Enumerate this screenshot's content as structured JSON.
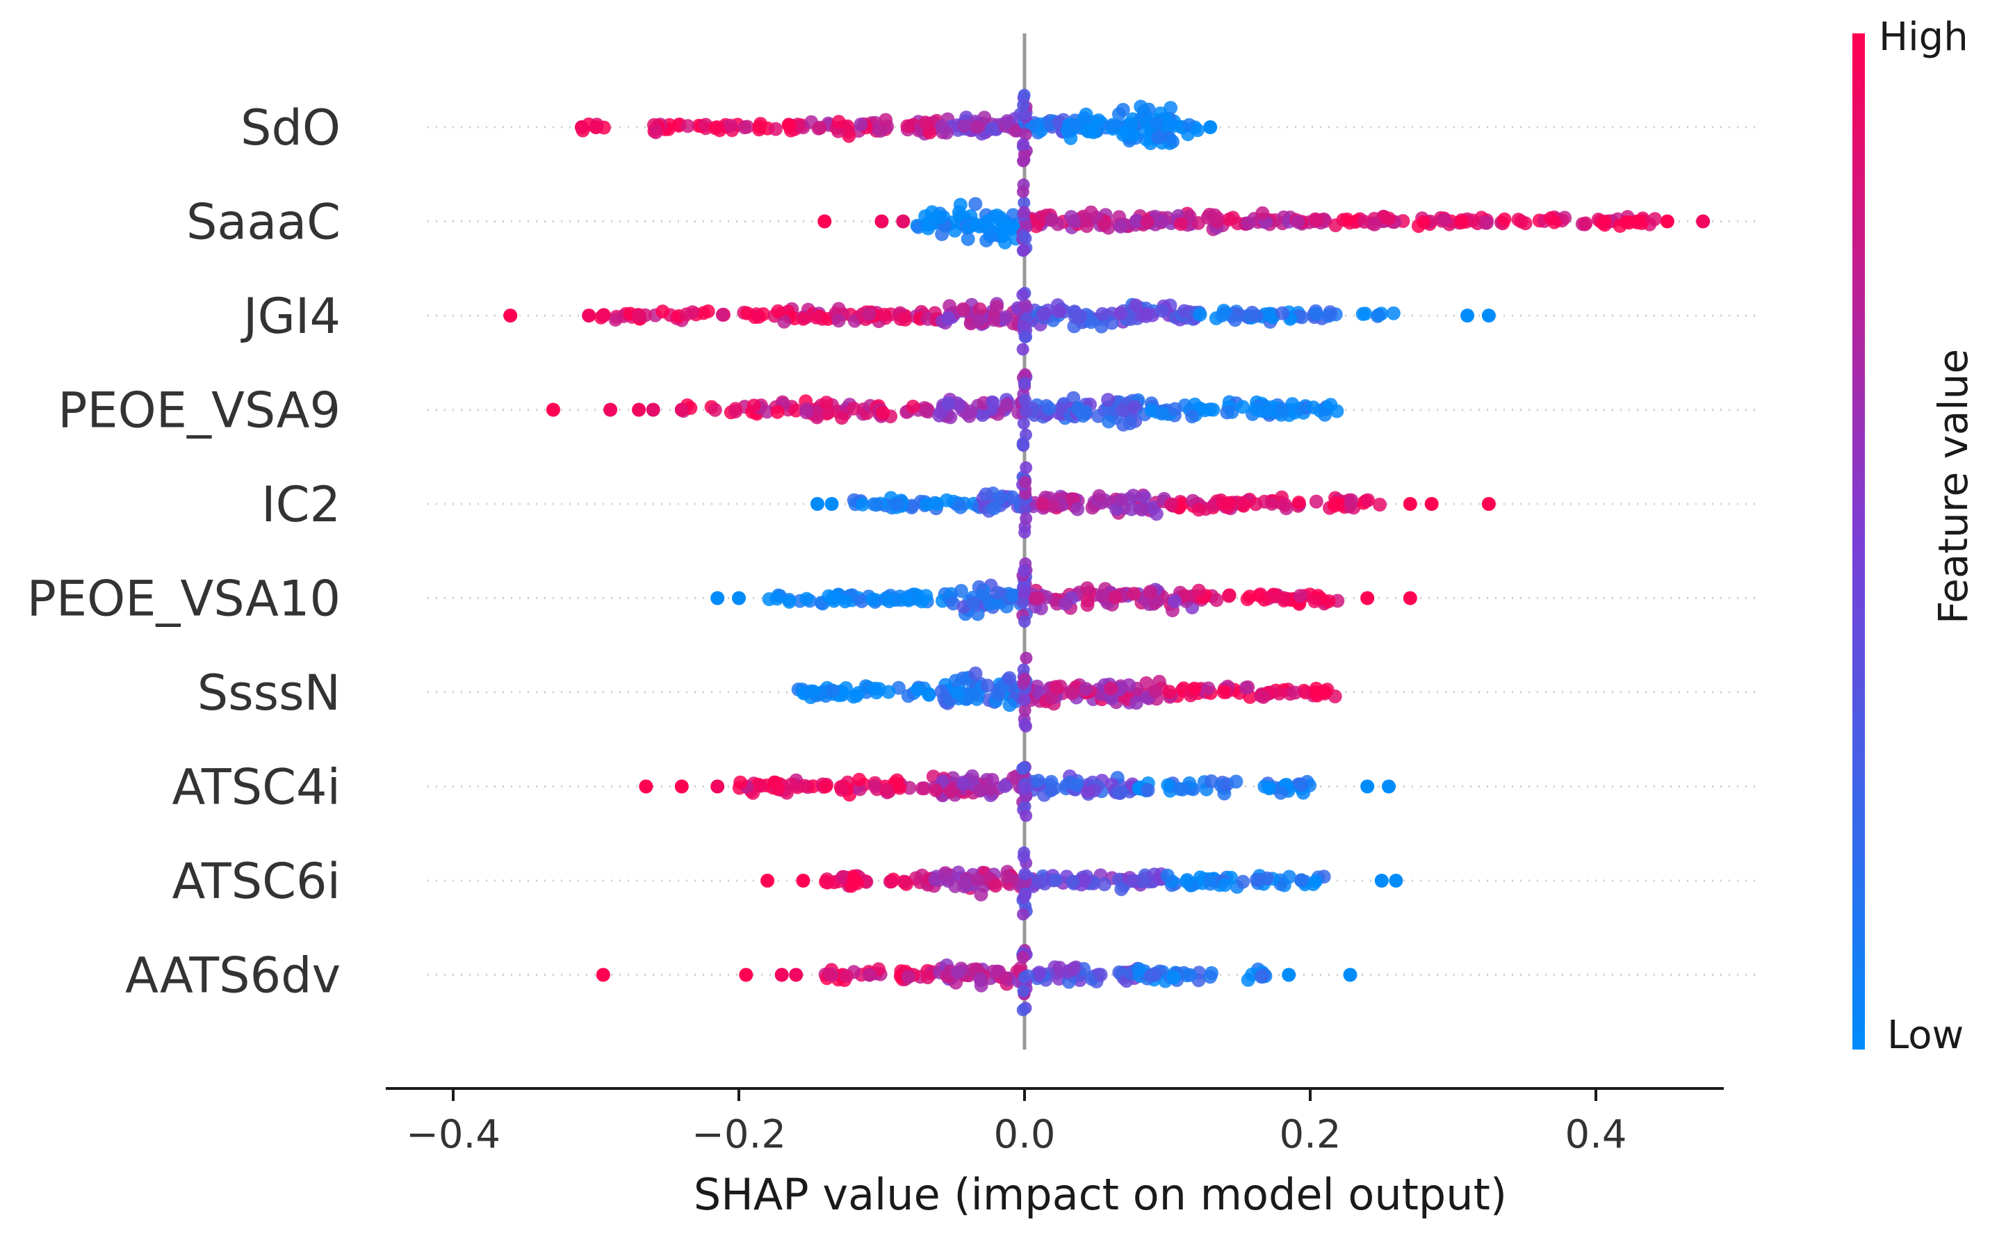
{
  "chart_data": {
    "type": "scatter",
    "subtype": "shap-beeswarm",
    "xlabel": "SHAP value (impact on model output)",
    "xlim": [
      -0.5,
      0.67
    ],
    "xticks": [
      -0.4,
      -0.2,
      0.0,
      0.2,
      0.4
    ],
    "xtick_labels": [
      "−0.4",
      "−0.2",
      "0.0",
      "0.2",
      "0.4"
    ],
    "zero_line": true,
    "colorbar": {
      "title": "Feature value",
      "high_label": "High",
      "low_label": "Low",
      "low_color": "#008bfb",
      "mid_color": "#7a3fd6",
      "high_color": "#ff0052"
    },
    "features": [
      {
        "name": "SdO",
        "segments": [
          {
            "from": -0.31,
            "to": -0.29,
            "color": 1.0,
            "density": 0.3,
            "spread": 0.15
          },
          {
            "from": -0.27,
            "to": -0.15,
            "color": 0.95,
            "density": 1.0,
            "spread": 0.2
          },
          {
            "from": -0.15,
            "to": -0.06,
            "color": 0.8,
            "density": 1.4,
            "spread": 0.3
          },
          {
            "from": -0.06,
            "to": 0.0,
            "color": 0.55,
            "density": 2.2,
            "spread": 0.45
          },
          {
            "from": 0.0,
            "to": 0.03,
            "color": 0.2,
            "density": 2.0,
            "spread": 0.45
          },
          {
            "from": 0.03,
            "to": 0.11,
            "color": 0.0,
            "density": 3.2,
            "spread": 0.75
          },
          {
            "from": 0.11,
            "to": 0.13,
            "color": 0.0,
            "density": 0.8,
            "spread": 0.3
          }
        ],
        "outliers": [
          [
            -0.31,
            0.95
          ],
          [
            -0.3,
            0.95
          ],
          [
            0.13,
            0.0
          ]
        ]
      },
      {
        "name": "SaaaC",
        "segments": [
          {
            "from": -0.08,
            "to": -0.04,
            "color": 0.0,
            "density": 2.2,
            "spread": 0.55
          },
          {
            "from": -0.04,
            "to": -0.005,
            "color": 0.0,
            "density": 3.0,
            "spread": 0.9
          },
          {
            "from": 0.0,
            "to": 0.2,
            "color": 0.75,
            "density": 1.6,
            "spread": 0.3
          },
          {
            "from": 0.2,
            "to": 0.45,
            "color": 0.9,
            "density": 1.0,
            "spread": 0.2
          }
        ],
        "outliers": [
          [
            -0.14,
            1.0
          ],
          [
            -0.1,
            0.95
          ],
          [
            -0.085,
            0.9
          ],
          [
            0.43,
            1.0
          ],
          [
            0.45,
            1.0
          ],
          [
            0.475,
            0.95
          ]
        ]
      },
      {
        "name": "JGI4",
        "segments": [
          {
            "from": -0.3,
            "to": -0.18,
            "color": 0.95,
            "density": 0.8,
            "spread": 0.2
          },
          {
            "from": -0.18,
            "to": -0.06,
            "color": 0.85,
            "density": 1.4,
            "spread": 0.35
          },
          {
            "from": -0.06,
            "to": 0.0,
            "color": 0.65,
            "density": 2.2,
            "spread": 0.5
          },
          {
            "from": 0.0,
            "to": 0.12,
            "color": 0.35,
            "density": 1.8,
            "spread": 0.4
          },
          {
            "from": 0.12,
            "to": 0.22,
            "color": 0.1,
            "density": 1.2,
            "spread": 0.25
          },
          {
            "from": 0.23,
            "to": 0.26,
            "color": 0.0,
            "density": 0.6,
            "spread": 0.15
          }
        ],
        "outliers": [
          [
            -0.36,
            1.0
          ],
          [
            -0.305,
            0.95
          ],
          [
            -0.295,
            0.95
          ],
          [
            -0.27,
            0.9
          ],
          [
            0.31,
            0.0
          ],
          [
            0.325,
            0.0
          ]
        ]
      },
      {
        "name": "PEOE_VSA9",
        "segments": [
          {
            "from": -0.24,
            "to": -0.19,
            "color": 0.95,
            "density": 0.6,
            "spread": 0.2
          },
          {
            "from": -0.19,
            "to": -0.06,
            "color": 0.85,
            "density": 1.3,
            "spread": 0.3
          },
          {
            "from": -0.06,
            "to": 0.0,
            "color": 0.6,
            "density": 2.0,
            "spread": 0.45
          },
          {
            "from": 0.0,
            "to": 0.08,
            "color": 0.3,
            "density": 2.4,
            "spread": 0.55
          },
          {
            "from": 0.08,
            "to": 0.22,
            "color": 0.05,
            "density": 1.4,
            "spread": 0.3
          }
        ],
        "outliers": [
          [
            -0.33,
            1.0
          ],
          [
            -0.29,
            0.95
          ],
          [
            -0.27,
            0.95
          ],
          [
            -0.26,
            0.9
          ],
          [
            -0.24,
            0.9
          ]
        ]
      },
      {
        "name": "IC2",
        "segments": [
          {
            "from": -0.12,
            "to": -0.03,
            "color": 0.05,
            "density": 1.2,
            "spread": 0.25
          },
          {
            "from": -0.03,
            "to": 0.0,
            "color": 0.35,
            "density": 2.0,
            "spread": 0.45
          },
          {
            "from": 0.0,
            "to": 0.1,
            "color": 0.7,
            "density": 1.8,
            "spread": 0.35
          },
          {
            "from": 0.1,
            "to": 0.25,
            "color": 0.9,
            "density": 1.2,
            "spread": 0.25
          }
        ],
        "outliers": [
          [
            -0.145,
            0.0
          ],
          [
            -0.135,
            0.0
          ],
          [
            0.27,
            1.0
          ],
          [
            0.285,
            1.0
          ],
          [
            0.325,
            1.0
          ]
        ]
      },
      {
        "name": "PEOE_VSA10",
        "segments": [
          {
            "from": -0.18,
            "to": -0.05,
            "color": 0.0,
            "density": 1.3,
            "spread": 0.25
          },
          {
            "from": -0.05,
            "to": 0.0,
            "color": 0.2,
            "density": 2.4,
            "spread": 0.55
          },
          {
            "from": 0.0,
            "to": 0.12,
            "color": 0.7,
            "density": 1.8,
            "spread": 0.4
          },
          {
            "from": 0.12,
            "to": 0.22,
            "color": 0.95,
            "density": 1.2,
            "spread": 0.25
          }
        ],
        "outliers": [
          [
            -0.215,
            0.0
          ],
          [
            -0.2,
            0.0
          ],
          [
            0.24,
            1.0
          ],
          [
            0.27,
            1.0
          ]
        ]
      },
      {
        "name": "SsssN",
        "segments": [
          {
            "from": -0.16,
            "to": -0.06,
            "color": 0.0,
            "density": 1.2,
            "spread": 0.22
          },
          {
            "from": -0.06,
            "to": -0.005,
            "color": 0.15,
            "density": 3.0,
            "spread": 0.75
          },
          {
            "from": 0.0,
            "to": 0.1,
            "color": 0.75,
            "density": 2.2,
            "spread": 0.5
          },
          {
            "from": 0.1,
            "to": 0.22,
            "color": 0.9,
            "density": 1.3,
            "spread": 0.25
          }
        ],
        "outliers": []
      },
      {
        "name": "ATSC4i",
        "segments": [
          {
            "from": -0.2,
            "to": -0.07,
            "color": 0.9,
            "density": 1.3,
            "spread": 0.3
          },
          {
            "from": -0.07,
            "to": 0.0,
            "color": 0.7,
            "density": 2.2,
            "spread": 0.5
          },
          {
            "from": 0.0,
            "to": 0.08,
            "color": 0.35,
            "density": 1.8,
            "spread": 0.4
          },
          {
            "from": 0.08,
            "to": 0.2,
            "color": 0.1,
            "density": 1.1,
            "spread": 0.25
          }
        ],
        "outliers": [
          [
            -0.265,
            1.0
          ],
          [
            -0.24,
            1.0
          ],
          [
            -0.215,
            0.95
          ],
          [
            0.24,
            0.0
          ],
          [
            0.255,
            0.0
          ]
        ]
      },
      {
        "name": "ATSC6i",
        "segments": [
          {
            "from": -0.14,
            "to": -0.07,
            "color": 0.95,
            "density": 1.2,
            "spread": 0.25
          },
          {
            "from": -0.07,
            "to": 0.0,
            "color": 0.7,
            "density": 2.0,
            "spread": 0.45
          },
          {
            "from": 0.0,
            "to": 0.1,
            "color": 0.45,
            "density": 1.6,
            "spread": 0.35
          },
          {
            "from": 0.1,
            "to": 0.21,
            "color": 0.1,
            "density": 1.2,
            "spread": 0.25
          }
        ],
        "outliers": [
          [
            -0.18,
            1.0
          ],
          [
            -0.155,
            1.0
          ],
          [
            0.25,
            0.0
          ],
          [
            0.26,
            0.0
          ]
        ]
      },
      {
        "name": "AATS6dv",
        "segments": [
          {
            "from": -0.14,
            "to": -0.06,
            "color": 0.9,
            "density": 1.3,
            "spread": 0.28
          },
          {
            "from": -0.06,
            "to": 0.0,
            "color": 0.7,
            "density": 2.0,
            "spread": 0.45
          },
          {
            "from": 0.0,
            "to": 0.08,
            "color": 0.4,
            "density": 1.8,
            "spread": 0.4
          },
          {
            "from": 0.08,
            "to": 0.17,
            "color": 0.1,
            "density": 1.1,
            "spread": 0.25
          }
        ],
        "outliers": [
          [
            -0.295,
            1.0
          ],
          [
            -0.195,
            1.0
          ],
          [
            -0.17,
            0.95
          ],
          [
            -0.16,
            0.95
          ],
          [
            0.185,
            0.0
          ],
          [
            0.228,
            0.0
          ]
        ]
      }
    ]
  }
}
